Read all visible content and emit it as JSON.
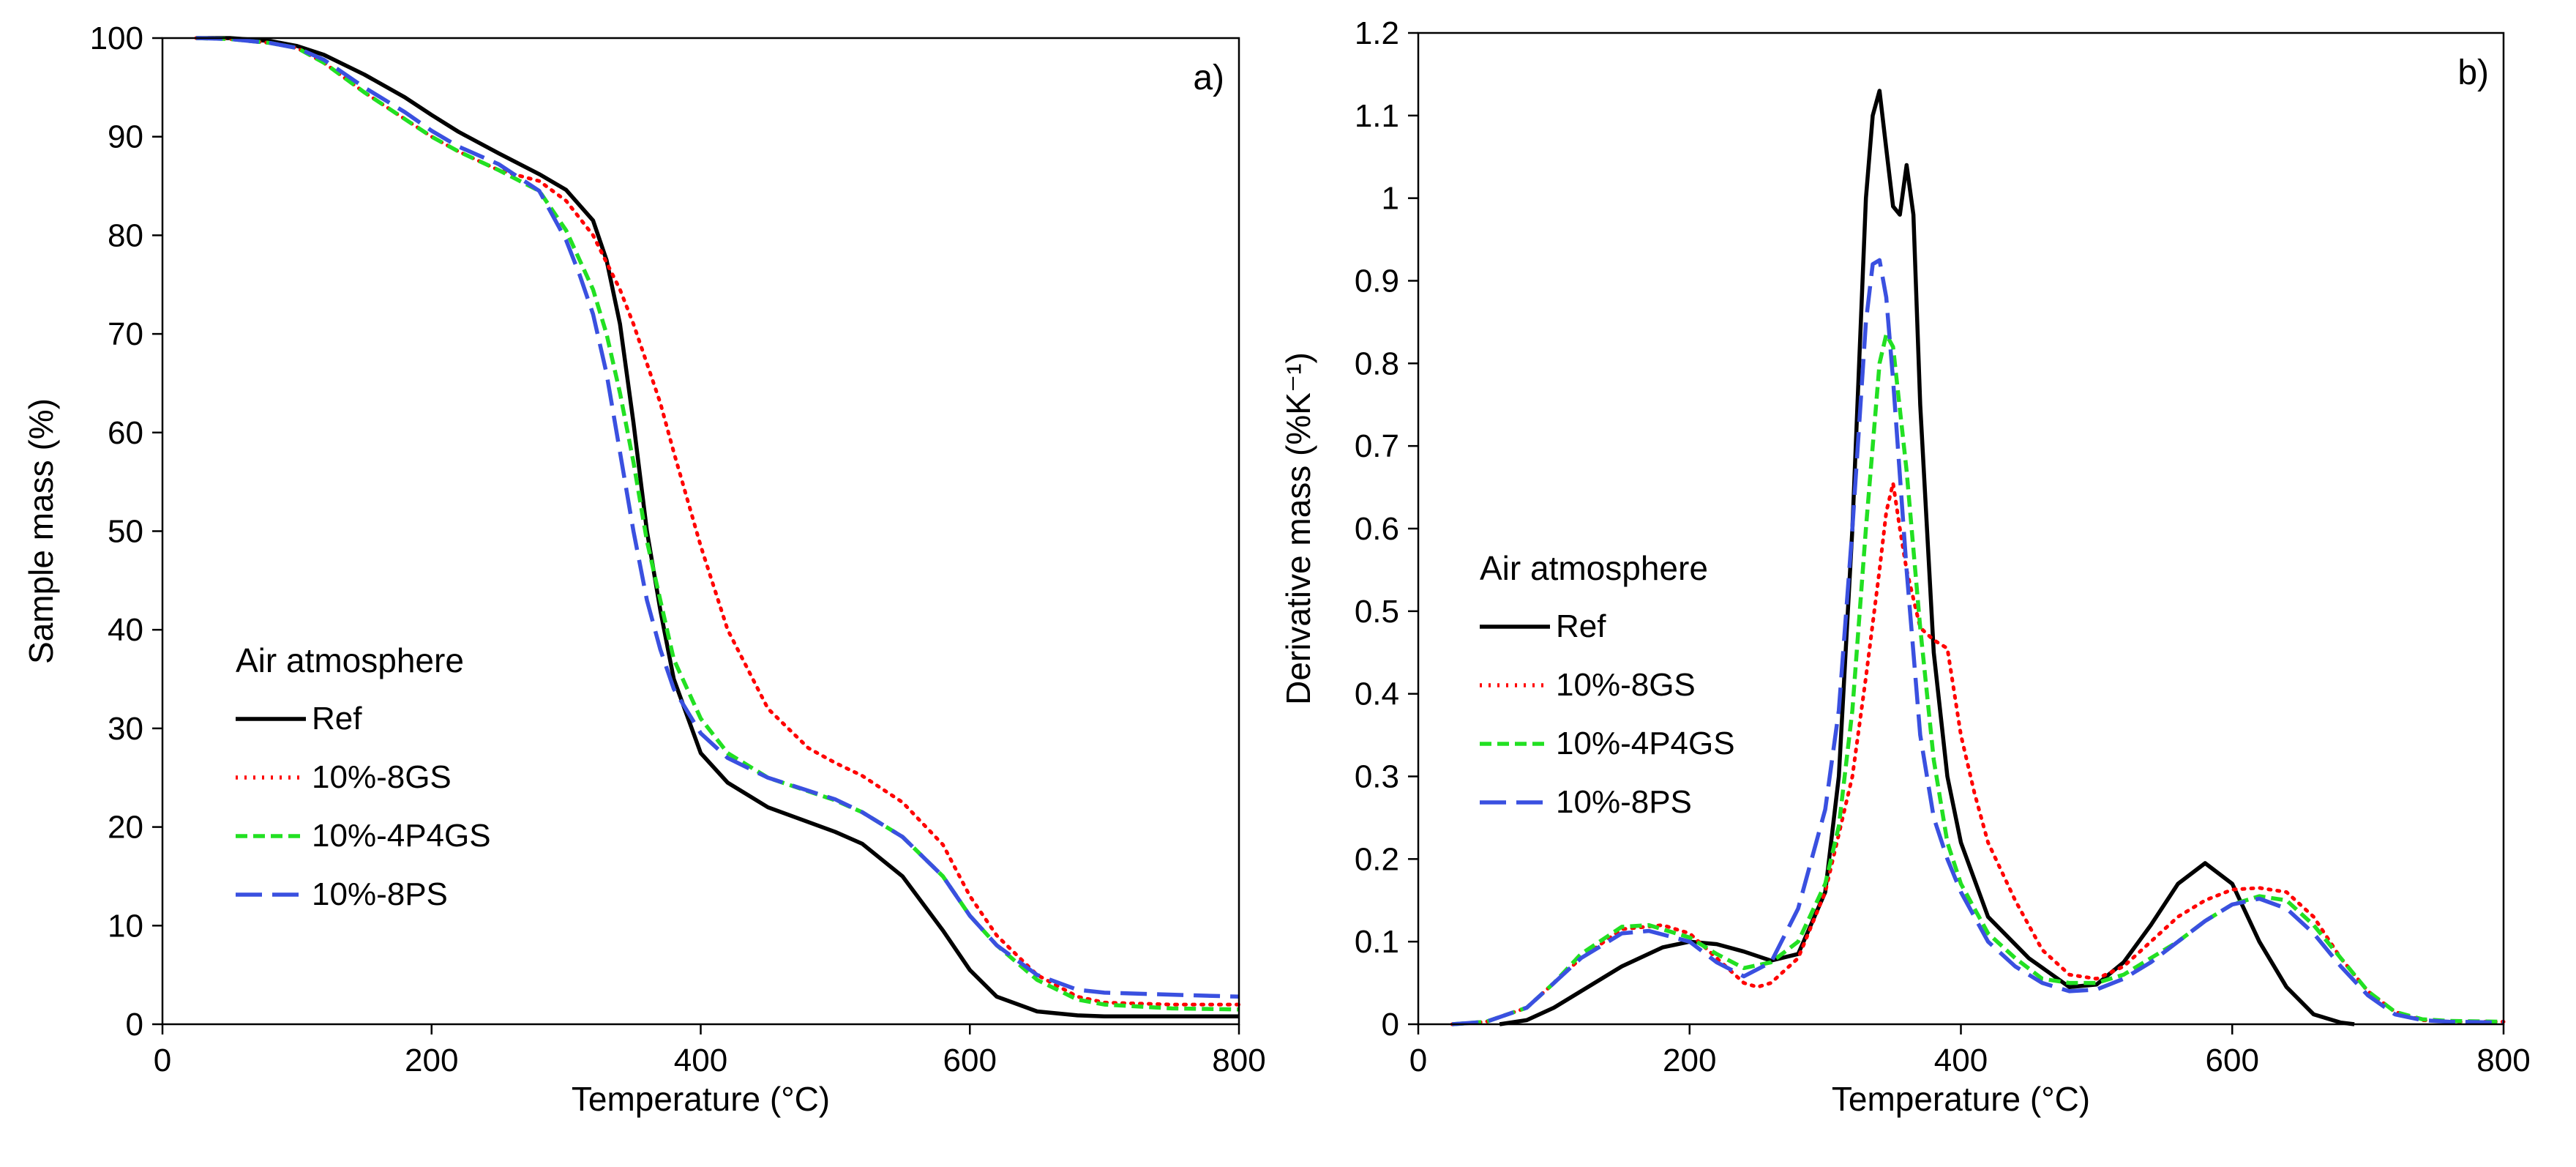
{
  "colors": {
    "ref": "#000000",
    "gs8": "#ff0000",
    "p4gs": "#22e022",
    "ps8": "#3a50e0"
  },
  "chart_data": [
    {
      "type": "line",
      "panel_label": "a)",
      "xlabel": "Temperature (°C)",
      "ylabel": "Sample mass (%)",
      "xlim": [
        0,
        800
      ],
      "ylim": [
        0,
        100
      ],
      "xticks": [
        0,
        200,
        400,
        600,
        800
      ],
      "yticks": [
        0,
        10,
        20,
        30,
        40,
        50,
        60,
        70,
        80,
        90,
        100
      ],
      "legend_title": "Air atmosphere",
      "legend_position": "middle-left",
      "series": [
        {
          "name": "Ref",
          "color": "#000000",
          "dash": "solid",
          "x": [
            25,
            50,
            80,
            100,
            120,
            150,
            180,
            200,
            220,
            250,
            280,
            300,
            320,
            330,
            340,
            350,
            360,
            370,
            380,
            400,
            420,
            450,
            500,
            520,
            550,
            580,
            600,
            620,
            650,
            680,
            700,
            750,
            800
          ],
          "y": [
            100,
            100,
            99.7,
            99.2,
            98.3,
            96.3,
            94,
            92.2,
            90.5,
            88.3,
            86.2,
            84.6,
            81.5,
            77.5,
            71,
            61,
            50,
            42,
            35,
            27.5,
            24.5,
            22,
            19.5,
            18.3,
            15,
            9.5,
            5.5,
            2.8,
            1.3,
            0.9,
            0.8,
            0.8,
            0.8
          ]
        },
        {
          "name": "10%-8GS",
          "color": "#ff0000",
          "dash": "dotted",
          "x": [
            25,
            50,
            80,
            100,
            120,
            150,
            180,
            200,
            220,
            250,
            280,
            300,
            320,
            340,
            350,
            360,
            370,
            380,
            400,
            420,
            450,
            480,
            500,
            520,
            550,
            580,
            600,
            620,
            650,
            680,
            700,
            750,
            800
          ],
          "y": [
            100,
            99.9,
            99.5,
            99,
            97.5,
            94.5,
            91.8,
            90,
            88.5,
            86.6,
            85.5,
            83.5,
            80,
            74.5,
            71,
            67,
            63,
            58,
            48.5,
            40,
            32,
            28,
            26.5,
            25.2,
            22.5,
            18.2,
            13,
            9,
            5,
            2.8,
            2.2,
            2,
            2
          ]
        },
        {
          "name": "10%-4P4GS",
          "color": "#22e022",
          "dash": "dashed",
          "x": [
            25,
            50,
            80,
            100,
            120,
            150,
            180,
            200,
            220,
            250,
            280,
            300,
            310,
            320,
            330,
            340,
            350,
            360,
            370,
            380,
            400,
            420,
            450,
            500,
            520,
            550,
            580,
            600,
            620,
            650,
            680,
            700,
            750,
            800
          ],
          "y": [
            100,
            99.9,
            99.5,
            99,
            97.5,
            94.5,
            91.8,
            90,
            88.5,
            86.6,
            84.5,
            80.5,
            77.5,
            74.5,
            70,
            64,
            57,
            49,
            43,
            37,
            31,
            27.5,
            25,
            22.7,
            21.5,
            19,
            15,
            11,
            8,
            4.5,
            2.5,
            2,
            1.6,
            1.5
          ]
        },
        {
          "name": "10%-8PS",
          "color": "#3a50e0",
          "dash": "longdash",
          "x": [
            25,
            50,
            80,
            100,
            120,
            150,
            180,
            200,
            220,
            250,
            280,
            300,
            310,
            320,
            330,
            340,
            350,
            360,
            370,
            380,
            400,
            420,
            450,
            500,
            520,
            550,
            580,
            600,
            620,
            650,
            680,
            700,
            750,
            800
          ],
          "y": [
            100,
            99.9,
            99.5,
            99,
            97.8,
            95,
            92.5,
            90.6,
            89,
            87.2,
            84.5,
            79.5,
            76,
            72,
            66,
            58,
            50,
            43,
            38,
            34,
            29.5,
            27,
            25,
            22.8,
            21.5,
            19,
            15,
            11,
            8,
            5,
            3.5,
            3.2,
            3,
            2.8
          ]
        }
      ]
    },
    {
      "type": "line",
      "panel_label": "b)",
      "xlabel": "Temperature (°C)",
      "ylabel": "Derivative mass (%K⁻¹)",
      "xlim": [
        0,
        800
      ],
      "ylim": [
        0,
        1.2
      ],
      "xticks": [
        0,
        200,
        400,
        600,
        800
      ],
      "yticks": [
        "0",
        "0.1",
        "0.2",
        "0.3",
        "0.4",
        "0.5",
        "0.6",
        "0.7",
        "0.8",
        "0.9",
        "1",
        "1.1",
        "1.2"
      ],
      "legend_title": "Air atmosphere",
      "legend_position": "middle-left",
      "series": [
        {
          "name": "Ref",
          "color": "#000000",
          "dash": "solid",
          "x": [
            60,
            80,
            100,
            120,
            150,
            180,
            200,
            220,
            240,
            260,
            280,
            300,
            310,
            320,
            330,
            335,
            340,
            345,
            350,
            355,
            360,
            365,
            370,
            380,
            390,
            400,
            420,
            450,
            480,
            500,
            520,
            540,
            560,
            580,
            600,
            620,
            640,
            660,
            680,
            690
          ],
          "y": [
            0,
            0.005,
            0.02,
            0.04,
            0.07,
            0.093,
            0.1,
            0.097,
            0.088,
            0.077,
            0.085,
            0.16,
            0.3,
            0.6,
            1,
            1.1,
            1.13,
            1.06,
            0.99,
            0.98,
            1.04,
            0.98,
            0.75,
            0.45,
            0.3,
            0.22,
            0.13,
            0.08,
            0.045,
            0.048,
            0.075,
            0.12,
            0.17,
            0.195,
            0.17,
            0.1,
            0.045,
            0.012,
            0.002,
            0
          ]
        },
        {
          "name": "10%-8GS",
          "color": "#ff0000",
          "dash": "dotted",
          "x": [
            25,
            50,
            80,
            100,
            120,
            150,
            180,
            200,
            220,
            240,
            250,
            260,
            280,
            300,
            320,
            330,
            340,
            345,
            350,
            355,
            360,
            370,
            380,
            390,
            400,
            410,
            420,
            440,
            460,
            480,
            500,
            520,
            540,
            560,
            580,
            600,
            620,
            640,
            660,
            680,
            700,
            720,
            740,
            760,
            780,
            800
          ],
          "y": [
            0,
            0.003,
            0.02,
            0.05,
            0.08,
            0.115,
            0.12,
            0.11,
            0.08,
            0.05,
            0.045,
            0.05,
            0.08,
            0.16,
            0.3,
            0.42,
            0.55,
            0.62,
            0.655,
            0.6,
            0.55,
            0.48,
            0.465,
            0.455,
            0.35,
            0.28,
            0.22,
            0.15,
            0.09,
            0.06,
            0.055,
            0.07,
            0.1,
            0.13,
            0.15,
            0.163,
            0.165,
            0.16,
            0.13,
            0.08,
            0.04,
            0.015,
            0.005,
            0.003,
            0.003,
            0.003
          ]
        },
        {
          "name": "10%-4P4GS",
          "color": "#22e022",
          "dash": "dashed",
          "x": [
            25,
            50,
            80,
            100,
            120,
            150,
            170,
            200,
            220,
            240,
            260,
            280,
            300,
            310,
            320,
            330,
            340,
            345,
            350,
            360,
            370,
            380,
            390,
            400,
            420,
            440,
            460,
            480,
            500,
            520,
            540,
            560,
            580,
            600,
            620,
            640,
            660,
            680,
            700,
            720,
            740,
            760,
            800
          ],
          "y": [
            0,
            0.003,
            0.02,
            0.05,
            0.085,
            0.118,
            0.12,
            0.105,
            0.085,
            0.068,
            0.075,
            0.1,
            0.17,
            0.24,
            0.38,
            0.6,
            0.8,
            0.835,
            0.82,
            0.67,
            0.48,
            0.32,
            0.22,
            0.17,
            0.11,
            0.08,
            0.055,
            0.05,
            0.05,
            0.06,
            0.08,
            0.1,
            0.125,
            0.145,
            0.155,
            0.15,
            0.12,
            0.08,
            0.04,
            0.015,
            0.006,
            0.004,
            0.003
          ]
        },
        {
          "name": "10%-8PS",
          "color": "#3a50e0",
          "dash": "longdash",
          "x": [
            25,
            50,
            80,
            100,
            120,
            150,
            170,
            200,
            220,
            240,
            260,
            280,
            300,
            310,
            320,
            330,
            335,
            340,
            345,
            350,
            360,
            370,
            380,
            390,
            400,
            420,
            440,
            460,
            480,
            500,
            520,
            540,
            560,
            580,
            600,
            620,
            640,
            660,
            680,
            700,
            720,
            740,
            760,
            800
          ],
          "y": [
            0,
            0.003,
            0.02,
            0.05,
            0.08,
            0.11,
            0.113,
            0.1,
            0.075,
            0.058,
            0.075,
            0.14,
            0.26,
            0.38,
            0.6,
            0.85,
            0.92,
            0.925,
            0.88,
            0.78,
            0.55,
            0.35,
            0.25,
            0.2,
            0.16,
            0.1,
            0.07,
            0.05,
            0.04,
            0.042,
            0.055,
            0.075,
            0.1,
            0.125,
            0.145,
            0.152,
            0.14,
            0.11,
            0.07,
            0.035,
            0.012,
            0.005,
            0.003,
            0.002
          ]
        }
      ]
    }
  ]
}
